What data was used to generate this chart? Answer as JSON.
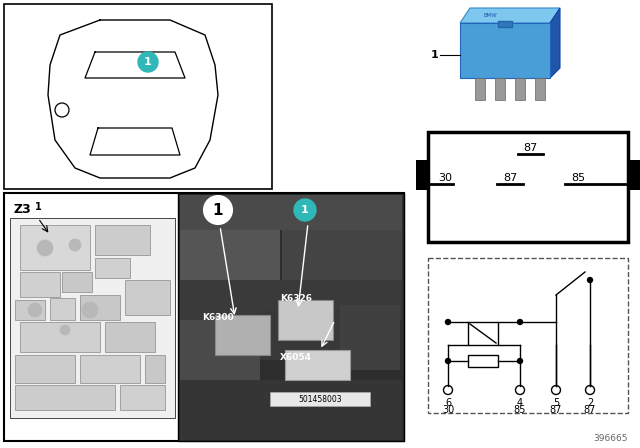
{
  "background_color": "#ffffff",
  "teal_color": "#30b8b8",
  "diagram_number": "396665",
  "part_number": "501458003",
  "z3_label": "Z3"
}
